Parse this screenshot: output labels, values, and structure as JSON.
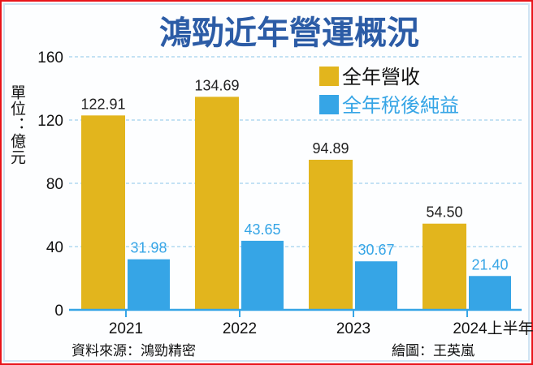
{
  "chart_data": {
    "type": "bar",
    "title": "鴻勁近年營運概況",
    "ylabel": "單位：億元",
    "xlabel": "",
    "categories": [
      "2021",
      "2022",
      "2023",
      "2024上半年"
    ],
    "series": [
      {
        "name": "全年營收",
        "values": [
          122.91,
          134.69,
          94.89,
          54.5
        ],
        "labels": [
          "122.91",
          "134.69",
          "94.89",
          "54.50"
        ],
        "color": "#e2b51d"
      },
      {
        "name": "全年稅後純益",
        "values": [
          31.98,
          43.65,
          30.67,
          21.4
        ],
        "labels": [
          "31.98",
          "43.65",
          "30.67",
          "21.40"
        ],
        "color": "#36a5e6"
      }
    ],
    "ylim": [
      0,
      160
    ],
    "yticks": [
      "0",
      "40",
      "80",
      "120",
      "160"
    ],
    "grid": true,
    "legend": "top-right",
    "source": "資料來源：鴻勁精密",
    "credit": "繪圖：王英嵐"
  },
  "colors": {
    "title": "#2c5ca6",
    "border": "#e8141a",
    "axis": "#36a5e6"
  }
}
